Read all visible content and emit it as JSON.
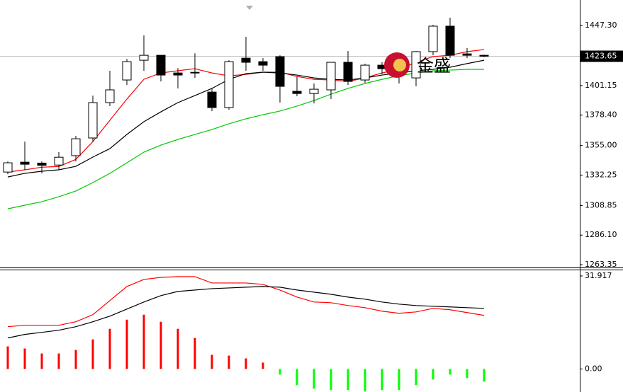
{
  "chart_data": [
    {
      "type": "candlestick",
      "open": [
        1334.6,
        1342.2,
        1341.5,
        1340.0,
        1347.2,
        1360.8,
        1388.0,
        1405.4,
        1420.6,
        1424.4,
        1410.8,
        1411.3,
        1396.1,
        1384.2,
        1422.2,
        1419.5,
        1423.3,
        1396.7,
        1395.0,
        1397.8,
        1419.0,
        1405.4,
        1416.8,
        1416.0,
        1407.0,
        1427.2,
        1446.8,
        1425.5,
        1424.4
      ],
      "high": [
        1342.8,
        1358.0,
        1342.8,
        1349.9,
        1362.4,
        1393.4,
        1412.5,
        1421.7,
        1439.7,
        1424.4,
        1414.6,
        1426.0,
        1398.9,
        1420.6,
        1438.6,
        1422.2,
        1424.4,
        1408.1,
        1402.7,
        1419.0,
        1427.7,
        1417.9,
        1419.0,
        1420.6,
        1427.7,
        1447.8,
        1453.3,
        1429.9,
        1424.9
      ],
      "low": [
        1333.0,
        1336.0,
        1333.5,
        1336.0,
        1342.8,
        1358.0,
        1385.3,
        1401.6,
        1412.5,
        1404.3,
        1398.9,
        1407.0,
        1381.4,
        1382.5,
        1412.5,
        1412.5,
        1388.0,
        1392.9,
        1387.4,
        1390.7,
        1401.6,
        1403.2,
        1410.0,
        1402.7,
        1400.5,
        1424.4,
        1422.2,
        1422.2,
        1423.0
      ],
      "close": [
        1341.7,
        1340.6,
        1339.8,
        1346.0,
        1360.2,
        1388.0,
        1397.8,
        1419.5,
        1424.4,
        1409.2,
        1409.2,
        1410.8,
        1384.2,
        1419.5,
        1419.0,
        1416.8,
        1400.5,
        1395.0,
        1398.3,
        1419.0,
        1404.3,
        1416.8,
        1414.1,
        1414.0,
        1427.2,
        1446.8,
        1424.4,
        1424.4,
        1423.65
      ],
      "lines": [
        {
          "color": "#ff0000",
          "values": [
            1334.6,
            1336.3,
            1338.3,
            1338.9,
            1344.3,
            1358.0,
            1374.4,
            1390.7,
            1405.9,
            1410.8,
            1412.5,
            1414.1,
            1410.8,
            1408.6,
            1409.7,
            1411.4,
            1411.4,
            1408.1,
            1405.9,
            1405.4,
            1404.3,
            1407.0,
            1410.8,
            1413.6,
            1419.0,
            1423.4,
            1424.4,
            1427.2,
            1428.8
          ]
        },
        {
          "color": "#000000",
          "values": [
            1330.8,
            1333.6,
            1335.2,
            1336.3,
            1339.0,
            1346.1,
            1352.6,
            1363.5,
            1373.3,
            1380.9,
            1388.0,
            1393.4,
            1398.9,
            1405.9,
            1410.3,
            1411.4,
            1410.8,
            1409.2,
            1407.0,
            1405.9,
            1405.4,
            1407.0,
            1409.2,
            1410.8,
            1412.5,
            1413.6,
            1415.2,
            1418.0,
            1420.6
          ]
        },
        {
          "color": "#00c800",
          "values": [
            1306.3,
            1309.1,
            1311.8,
            1315.6,
            1320.0,
            1326.5,
            1333.6,
            1341.7,
            1349.9,
            1355.3,
            1359.7,
            1363.5,
            1367.3,
            1371.7,
            1375.5,
            1378.7,
            1381.5,
            1385.3,
            1389.6,
            1394.5,
            1398.9,
            1402.7,
            1405.9,
            1408.7,
            1410.8,
            1412.5,
            1413.0,
            1413.6,
            1413.6
          ]
        }
      ],
      "ylim": [
        1261.2,
        1464.2
      ],
      "yticks": [
        {
          "value": 1447.3,
          "label": "1447.30"
        },
        {
          "value": 1401.15,
          "label": "1401.15"
        },
        {
          "value": 1378.4,
          "label": "1378.40"
        },
        {
          "value": 1355,
          "label": "1355.00"
        },
        {
          "value": 1332.25,
          "label": "1332.25"
        },
        {
          "value": 1308.85,
          "label": "1308.85"
        },
        {
          "value": 1286.1,
          "label": "1286.10"
        },
        {
          "value": 1263.35,
          "label": "1263.35"
        }
      ],
      "last_price": {
        "value": 1423.65,
        "label": "1423.65"
      },
      "watermark": "金盛"
    },
    {
      "type": "macd",
      "values": [
        7.74,
        7.01,
        5.32,
        5.32,
        6.53,
        10.15,
        13.78,
        16.92,
        18.62,
        16.2,
        13.78,
        10.64,
        4.84,
        4.59,
        3.63,
        2.18,
        -1.93,
        -5.56,
        -6.77,
        -7.25,
        -7.25,
        -7.74,
        -7.25,
        -7.25,
        -5.56,
        -3.63,
        -1.93,
        -3.14,
        -4.35
      ],
      "up_color": "#ff0000",
      "down_color": "#00ff00",
      "lines": [
        {
          "color": "#ff0000",
          "values": [
            14.51,
            14.99,
            14.99,
            14.99,
            16.2,
            18.62,
            23.45,
            28.29,
            30.71,
            31.43,
            31.67,
            31.67,
            29.5,
            29.5,
            29.5,
            29.01,
            27.08,
            24.66,
            22.97,
            22.73,
            21.76,
            21.03,
            19.83,
            19.1,
            19.58,
            20.79,
            20.31,
            19.34,
            18.38
          ]
        },
        {
          "color": "#000000",
          "values": [
            10.64,
            11.85,
            12.57,
            13.3,
            14.51,
            16.2,
            18.13,
            20.55,
            22.97,
            25.15,
            26.6,
            27.08,
            27.56,
            27.8,
            28.05,
            28.29,
            28.05,
            27.08,
            26.35,
            25.63,
            24.66,
            23.94,
            22.97,
            22.24,
            21.76,
            21.52,
            21.28,
            21.03,
            20.79
          ]
        }
      ],
      "ylim": [
        -7.9,
        33.85
      ],
      "yticks": [
        31.917,
        {
          "value": 0,
          "label": "0.00"
        }
      ]
    }
  ]
}
